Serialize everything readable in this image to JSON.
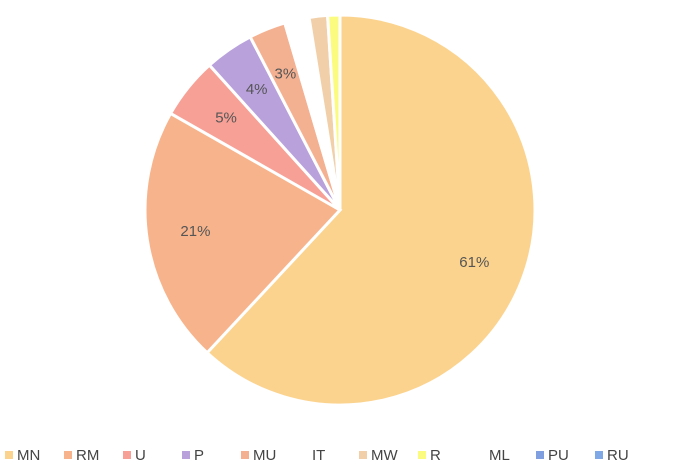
{
  "chart_data": {
    "type": "pie",
    "categories": [
      "MN",
      "RM",
      "U",
      "P",
      "MU",
      "IT",
      "MW",
      "R",
      "ML",
      "PU",
      "RU"
    ],
    "values": [
      61,
      21,
      5,
      4,
      3,
      2,
      1.5,
      1,
      0,
      0,
      0
    ],
    "value_labels": [
      "61%",
      "21%",
      "5%",
      "4%",
      "3%",
      null,
      null,
      null,
      null,
      null,
      null
    ],
    "colors": [
      "#fbd38e",
      "#f7b48c",
      "#f7a096",
      "#b9a1dc",
      "#f4b192",
      "#ffffff",
      "#f1cfa8",
      "#fbfb80",
      "#ffffff",
      "#7f9fe0",
      "#7fa8e6"
    ],
    "legend": "bottom"
  }
}
